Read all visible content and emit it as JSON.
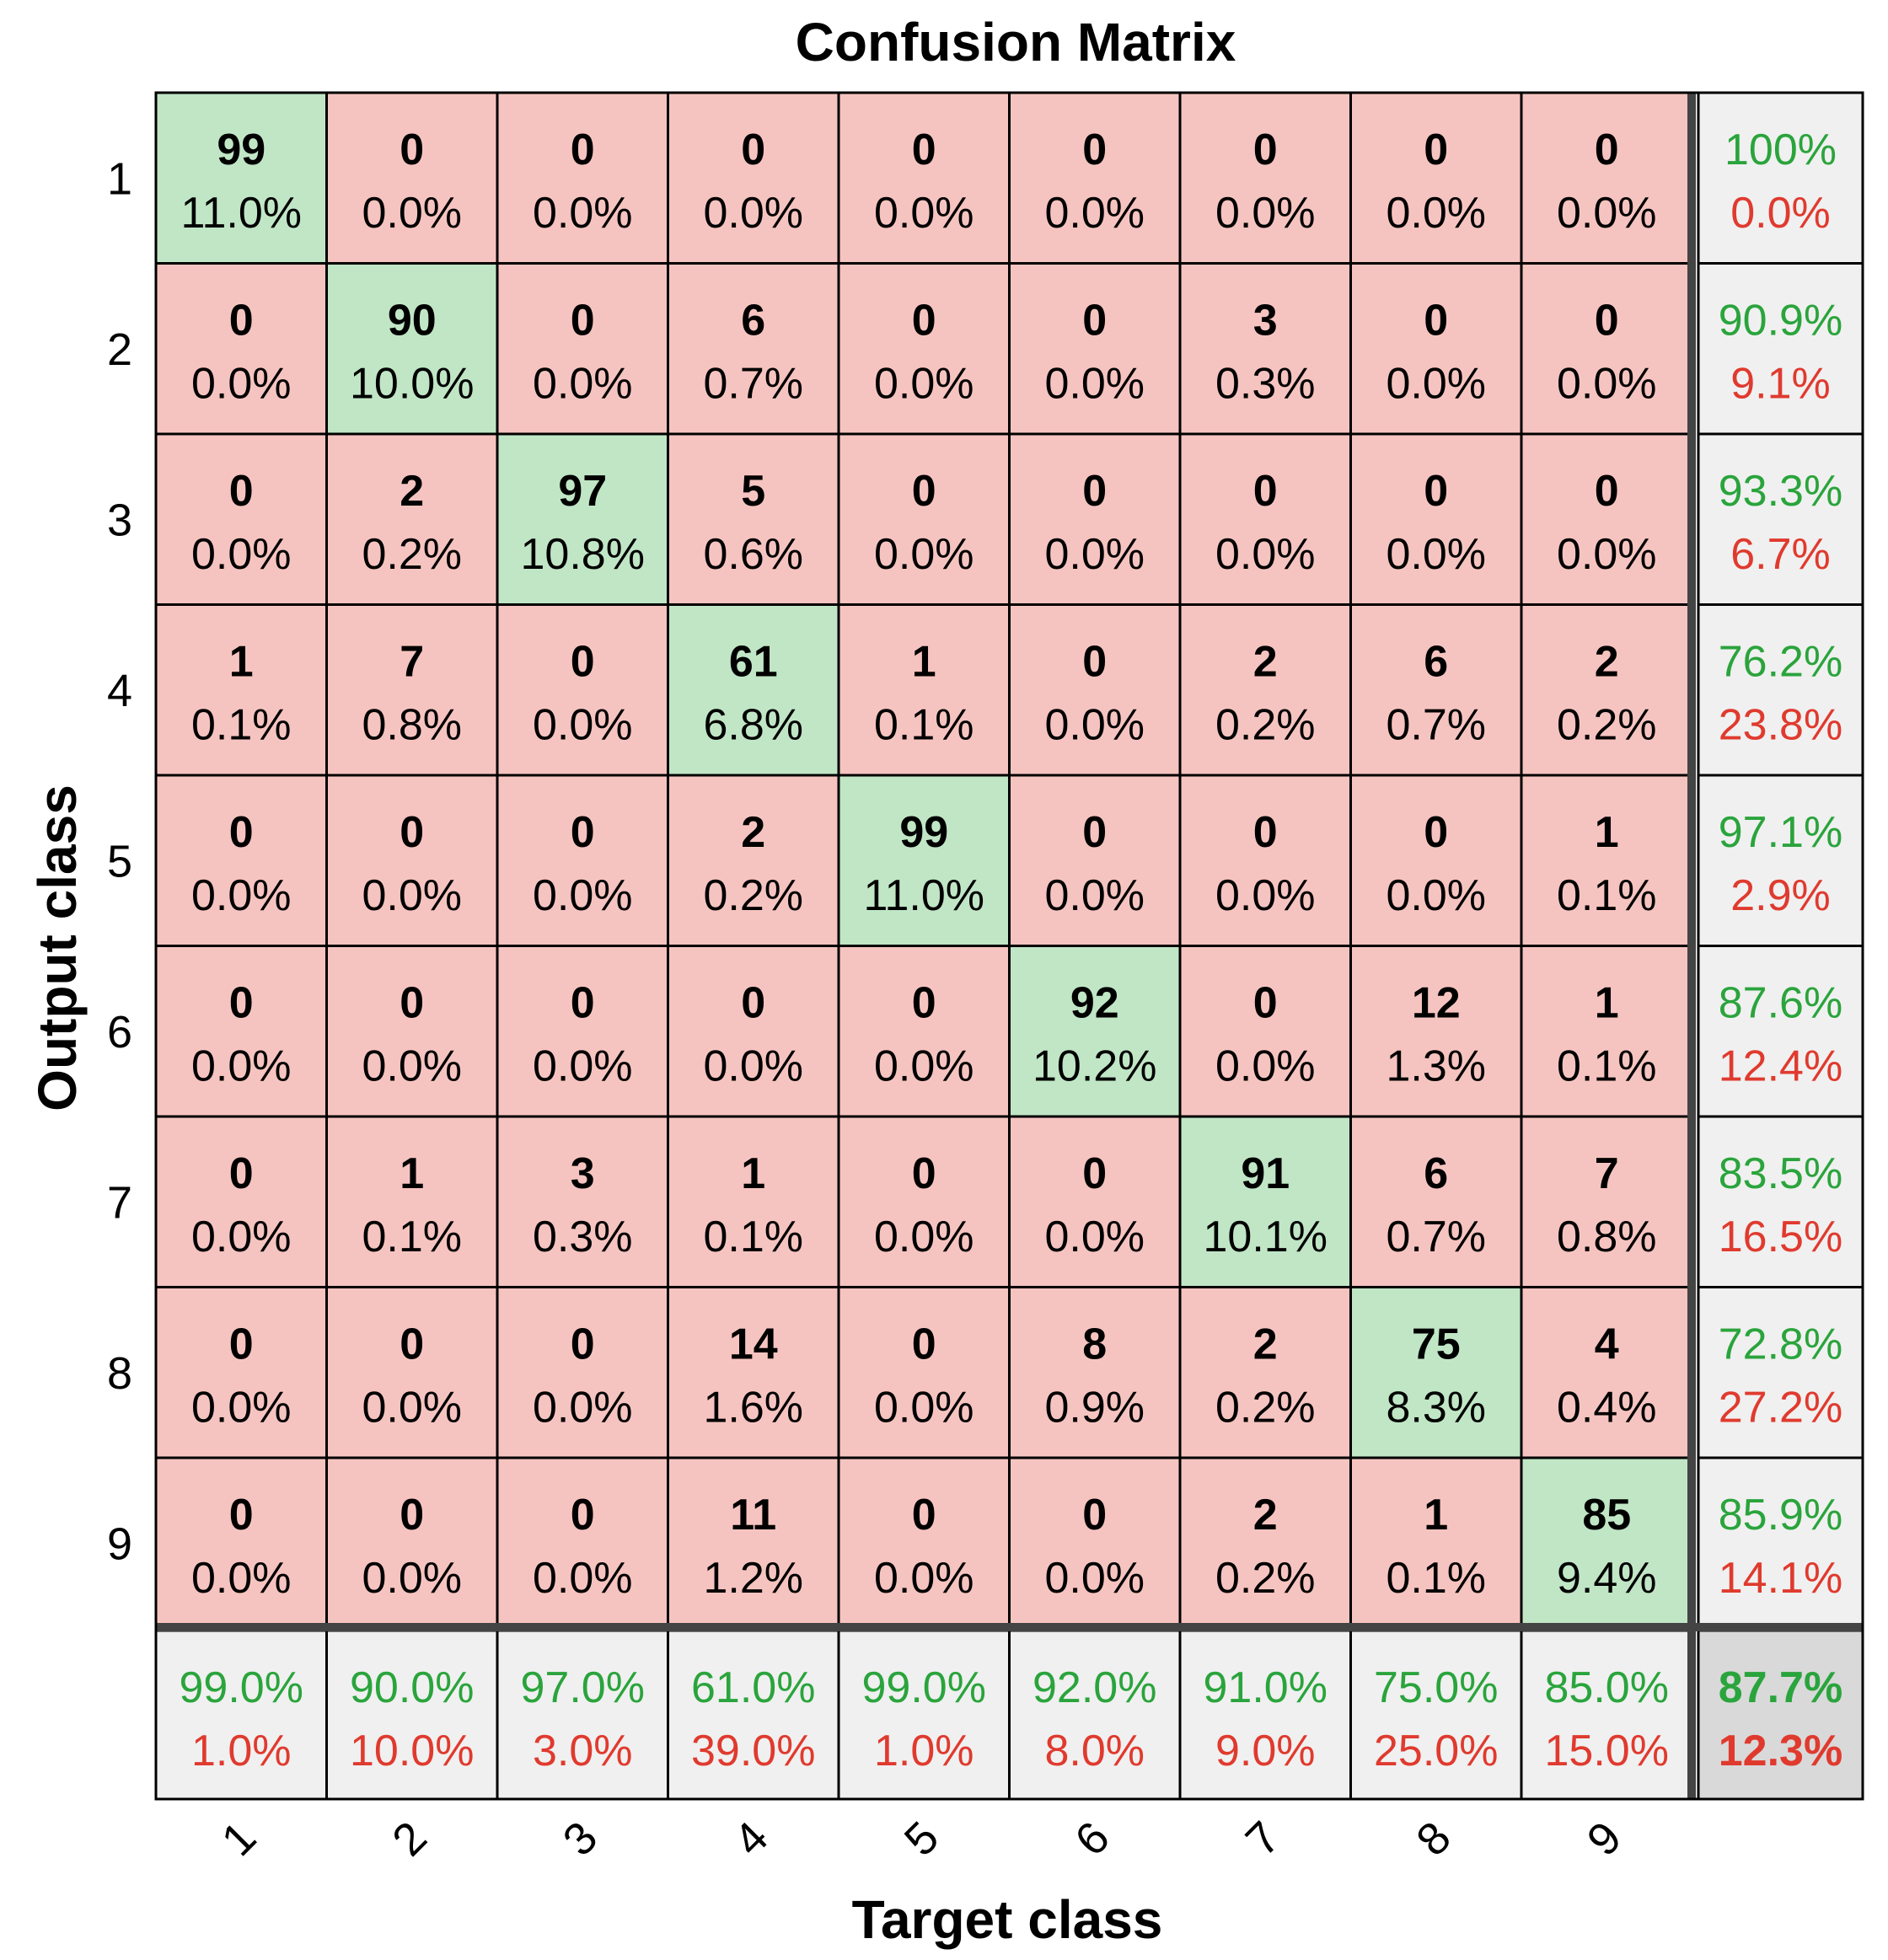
{
  "chart_data": {
    "type": "heatmap",
    "title": "Confusion Matrix",
    "xlabel": "Target class",
    "ylabel": "Output class",
    "x_tick_labels": [
      "1",
      "2",
      "3",
      "4",
      "5",
      "6",
      "7",
      "8",
      "9"
    ],
    "y_tick_labels": [
      "1",
      "2",
      "3",
      "4",
      "5",
      "6",
      "7",
      "8",
      "9"
    ],
    "matrix": [
      [
        99,
        0,
        0,
        0,
        0,
        0,
        0,
        0,
        0
      ],
      [
        0,
        90,
        0,
        6,
        0,
        0,
        3,
        0,
        0
      ],
      [
        0,
        2,
        97,
        5,
        0,
        0,
        0,
        0,
        0
      ],
      [
        1,
        7,
        0,
        61,
        1,
        0,
        2,
        6,
        2
      ],
      [
        0,
        0,
        0,
        2,
        99,
        0,
        0,
        0,
        1
      ],
      [
        0,
        0,
        0,
        0,
        0,
        92,
        0,
        12,
        1
      ],
      [
        0,
        1,
        3,
        1,
        0,
        0,
        91,
        6,
        7
      ],
      [
        0,
        0,
        0,
        14,
        0,
        8,
        2,
        75,
        4
      ],
      [
        0,
        0,
        0,
        11,
        0,
        0,
        2,
        1,
        85
      ]
    ],
    "cell_percents": [
      [
        "11.0%",
        "0.0%",
        "0.0%",
        "0.0%",
        "0.0%",
        "0.0%",
        "0.0%",
        "0.0%",
        "0.0%"
      ],
      [
        "0.0%",
        "10.0%",
        "0.0%",
        "0.7%",
        "0.0%",
        "0.0%",
        "0.3%",
        "0.0%",
        "0.0%"
      ],
      [
        "0.0%",
        "0.2%",
        "10.8%",
        "0.6%",
        "0.0%",
        "0.0%",
        "0.0%",
        "0.0%",
        "0.0%"
      ],
      [
        "0.1%",
        "0.8%",
        "0.0%",
        "6.8%",
        "0.1%",
        "0.0%",
        "0.2%",
        "0.7%",
        "0.2%"
      ],
      [
        "0.0%",
        "0.0%",
        "0.0%",
        "0.2%",
        "11.0%",
        "0.0%",
        "0.0%",
        "0.0%",
        "0.1%"
      ],
      [
        "0.0%",
        "0.0%",
        "0.0%",
        "0.0%",
        "0.0%",
        "10.2%",
        "0.0%",
        "1.3%",
        "0.1%"
      ],
      [
        "0.0%",
        "0.1%",
        "0.3%",
        "0.1%",
        "0.0%",
        "0.0%",
        "10.1%",
        "0.7%",
        "0.8%"
      ],
      [
        "0.0%",
        "0.0%",
        "0.0%",
        "1.6%",
        "0.0%",
        "0.9%",
        "0.2%",
        "8.3%",
        "0.4%"
      ],
      [
        "0.0%",
        "0.0%",
        "0.0%",
        "1.2%",
        "0.0%",
        "0.0%",
        "0.2%",
        "0.1%",
        "9.4%"
      ]
    ],
    "row_summary": [
      {
        "correct": "100%",
        "error": "0.0%"
      },
      {
        "correct": "90.9%",
        "error": "9.1%"
      },
      {
        "correct": "93.3%",
        "error": "6.7%"
      },
      {
        "correct": "76.2%",
        "error": "23.8%"
      },
      {
        "correct": "97.1%",
        "error": "2.9%"
      },
      {
        "correct": "87.6%",
        "error": "12.4%"
      },
      {
        "correct": "83.5%",
        "error": "16.5%"
      },
      {
        "correct": "72.8%",
        "error": "27.2%"
      },
      {
        "correct": "85.9%",
        "error": "14.1%"
      }
    ],
    "col_summary": [
      {
        "correct": "99.0%",
        "error": "1.0%"
      },
      {
        "correct": "90.0%",
        "error": "10.0%"
      },
      {
        "correct": "97.0%",
        "error": "3.0%"
      },
      {
        "correct": "61.0%",
        "error": "39.0%"
      },
      {
        "correct": "99.0%",
        "error": "1.0%"
      },
      {
        "correct": "92.0%",
        "error": "8.0%"
      },
      {
        "correct": "91.0%",
        "error": "9.0%"
      },
      {
        "correct": "75.0%",
        "error": "25.0%"
      },
      {
        "correct": "85.0%",
        "error": "15.0%"
      }
    ],
    "overall": {
      "correct": "87.7%",
      "error": "12.3%"
    },
    "colors": {
      "diagonal": "#c0e6c6",
      "off_diagonal": "#f6c4c0",
      "summary": "#f0f0f0",
      "overall": "#d9d9d9",
      "correct_text": "#2aa43c",
      "error_text": "#e03a2e",
      "text": "#000000"
    }
  }
}
